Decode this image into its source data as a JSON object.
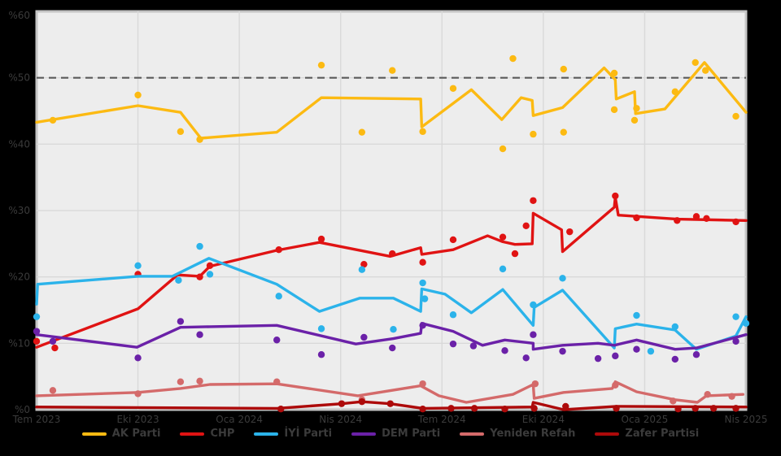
{
  "figure": {
    "background": "#000000",
    "plot_bg": "#EDEDED",
    "grid_color": "#D9D9D9",
    "spine_color": "#C4C4C4",
    "text_color": "#3B3B3B",
    "dashed_line_color": "#5A5A5A"
  },
  "chart_data": {
    "type": "line",
    "title": "",
    "xlabel": "",
    "ylabel": "",
    "x_axis": {
      "range": [
        0,
        7
      ],
      "tick_labels": [
        "Tem 2023",
        "Eki 2023",
        "Oca 2024",
        "Nis 2024",
        "Tem 2024",
        "Eki 2024",
        "Oca 2025",
        "Nis 2025"
      ]
    },
    "y_axis": {
      "range": [
        0,
        60
      ],
      "unit": "%",
      "tick_labels": [
        "%60",
        "%50",
        "%40",
        "%30",
        "%20",
        "%10",
        "%0"
      ],
      "tick_values": [
        60,
        50,
        40,
        30,
        20,
        10,
        0
      ]
    },
    "majority_threshold": 50,
    "grid": true,
    "legend_position": "bottom",
    "series": [
      {
        "name": "AK Parti",
        "color": "#FCBA12",
        "trend": [
          [
            0,
            43.3
          ],
          [
            1.0,
            45.8
          ],
          [
            1.42,
            44.8
          ],
          [
            1.62,
            40.9
          ],
          [
            2.37,
            41.8
          ],
          [
            2.81,
            47.0
          ],
          [
            3.79,
            46.8
          ],
          [
            3.8,
            42.6
          ],
          [
            4.29,
            48.2
          ],
          [
            4.59,
            43.7
          ],
          [
            4.78,
            47.0
          ],
          [
            4.89,
            46.6
          ],
          [
            4.9,
            44.3
          ],
          [
            5.19,
            45.5
          ],
          [
            5.6,
            51.5
          ],
          [
            5.71,
            49.7
          ],
          [
            5.72,
            46.8
          ],
          [
            5.9,
            47.9
          ],
          [
            5.91,
            44.6
          ],
          [
            6.2,
            45.3
          ],
          [
            6.59,
            52.3
          ],
          [
            7.0,
            44.8
          ]
        ],
        "points": [
          [
            0.16,
            43.6
          ],
          [
            1.0,
            47.4
          ],
          [
            1.42,
            41.9
          ],
          [
            1.61,
            40.7
          ],
          [
            2.81,
            51.9
          ],
          [
            3.21,
            41.8
          ],
          [
            3.51,
            51.1
          ],
          [
            3.81,
            41.9
          ],
          [
            4.11,
            48.4
          ],
          [
            4.6,
            39.3
          ],
          [
            4.7,
            52.9
          ],
          [
            4.9,
            41.5
          ],
          [
            5.2,
            51.3
          ],
          [
            5.2,
            41.8
          ],
          [
            5.7,
            50.7
          ],
          [
            5.7,
            45.2
          ],
          [
            5.9,
            43.6
          ],
          [
            5.92,
            45.4
          ],
          [
            6.3,
            47.9
          ],
          [
            6.5,
            52.3
          ],
          [
            6.6,
            51.1
          ],
          [
            6.9,
            44.2
          ]
        ]
      },
      {
        "name": "CHP",
        "color": "#E01313",
        "trend": [
          [
            0,
            9.4
          ],
          [
            1.0,
            15.2
          ],
          [
            1.39,
            20.3
          ],
          [
            1.61,
            20.1
          ],
          [
            1.71,
            21.6
          ],
          [
            2.37,
            24.0
          ],
          [
            2.79,
            25.2
          ],
          [
            3.49,
            23.1
          ],
          [
            3.79,
            24.4
          ],
          [
            3.8,
            23.4
          ],
          [
            4.11,
            24.1
          ],
          [
            4.45,
            26.2
          ],
          [
            4.6,
            25.3
          ],
          [
            4.72,
            24.9
          ],
          [
            4.89,
            25.0
          ],
          [
            4.9,
            29.6
          ],
          [
            5.18,
            27.1
          ],
          [
            5.19,
            23.8
          ],
          [
            5.7,
            30.5
          ],
          [
            5.71,
            32.0
          ],
          [
            5.74,
            29.3
          ],
          [
            6.32,
            28.7
          ],
          [
            7.0,
            28.5
          ]
        ],
        "points": [
          [
            0.0,
            10.3
          ],
          [
            0.18,
            9.3
          ],
          [
            1.0,
            20.4
          ],
          [
            1.61,
            20.0
          ],
          [
            1.71,
            21.7
          ],
          [
            2.39,
            24.1
          ],
          [
            2.81,
            25.7
          ],
          [
            3.23,
            21.9
          ],
          [
            3.51,
            23.5
          ],
          [
            3.81,
            22.2
          ],
          [
            4.11,
            25.6
          ],
          [
            4.6,
            26.0
          ],
          [
            4.72,
            23.5
          ],
          [
            4.83,
            27.7
          ],
          [
            4.9,
            31.5
          ],
          [
            5.26,
            26.8
          ],
          [
            5.71,
            32.2
          ],
          [
            5.92,
            28.9
          ],
          [
            6.32,
            28.5
          ],
          [
            6.51,
            29.1
          ],
          [
            6.61,
            28.8
          ],
          [
            6.9,
            28.3
          ]
        ]
      },
      {
        "name": "İYİ Parti",
        "color": "#2BB3EA",
        "trend": [
          [
            0,
            15.9
          ],
          [
            0.01,
            18.9
          ],
          [
            1.0,
            20.1
          ],
          [
            1.34,
            20.1
          ],
          [
            1.7,
            22.8
          ],
          [
            2.37,
            18.9
          ],
          [
            2.79,
            14.8
          ],
          [
            3.19,
            16.8
          ],
          [
            3.52,
            16.8
          ],
          [
            3.79,
            14.8
          ],
          [
            3.8,
            18.2
          ],
          [
            4.03,
            17.4
          ],
          [
            4.29,
            14.6
          ],
          [
            4.6,
            18.1
          ],
          [
            4.9,
            12.7
          ],
          [
            4.91,
            15.4
          ],
          [
            5.19,
            18.0
          ],
          [
            5.7,
            9.3
          ],
          [
            5.71,
            12.2
          ],
          [
            5.92,
            12.9
          ],
          [
            6.3,
            12.0
          ],
          [
            6.51,
            9.1
          ],
          [
            6.9,
            11.1
          ],
          [
            7.0,
            14.0
          ]
        ],
        "points": [
          [
            0.0,
            14.0
          ],
          [
            1.0,
            21.7
          ],
          [
            1.4,
            19.5
          ],
          [
            1.61,
            24.6
          ],
          [
            1.71,
            20.4
          ],
          [
            2.39,
            17.1
          ],
          [
            2.81,
            12.2
          ],
          [
            3.21,
            21.1
          ],
          [
            3.52,
            12.1
          ],
          [
            3.81,
            19.1
          ],
          [
            3.83,
            16.7
          ],
          [
            4.11,
            14.3
          ],
          [
            4.6,
            21.2
          ],
          [
            4.9,
            15.8
          ],
          [
            5.19,
            19.8
          ],
          [
            5.92,
            14.2
          ],
          [
            6.06,
            8.8
          ],
          [
            6.3,
            12.5
          ],
          [
            6.9,
            14.0
          ],
          [
            7.0,
            13.0
          ]
        ]
      },
      {
        "name": "DEM Parti",
        "color": "#6B21A8",
        "trend": [
          [
            0,
            11.3
          ],
          [
            0.99,
            9.4
          ],
          [
            1.42,
            12.4
          ],
          [
            1.71,
            12.5
          ],
          [
            2.37,
            12.7
          ],
          [
            3.15,
            9.9
          ],
          [
            3.52,
            10.7
          ],
          [
            3.79,
            11.5
          ],
          [
            3.8,
            13.0
          ],
          [
            4.11,
            11.8
          ],
          [
            4.4,
            9.7
          ],
          [
            4.62,
            10.5
          ],
          [
            4.9,
            10.0
          ],
          [
            4.9,
            9.1
          ],
          [
            5.19,
            9.7
          ],
          [
            5.54,
            10.0
          ],
          [
            5.7,
            9.7
          ],
          [
            5.92,
            10.5
          ],
          [
            6.3,
            9.1
          ],
          [
            6.51,
            9.3
          ],
          [
            7.0,
            11.3
          ]
        ],
        "points": [
          [
            0.0,
            11.8
          ],
          [
            0.16,
            10.3
          ],
          [
            1.0,
            7.8
          ],
          [
            1.42,
            13.3
          ],
          [
            1.61,
            11.3
          ],
          [
            2.37,
            10.5
          ],
          [
            2.81,
            8.3
          ],
          [
            3.23,
            10.9
          ],
          [
            3.51,
            9.3
          ],
          [
            3.81,
            12.7
          ],
          [
            4.11,
            9.9
          ],
          [
            4.31,
            9.6
          ],
          [
            4.62,
            8.9
          ],
          [
            4.83,
            7.8
          ],
          [
            4.9,
            11.3
          ],
          [
            5.19,
            8.8
          ],
          [
            5.54,
            7.7
          ],
          [
            5.71,
            8.1
          ],
          [
            5.92,
            9.1
          ],
          [
            6.3,
            7.6
          ],
          [
            6.51,
            8.3
          ],
          [
            6.9,
            10.3
          ]
        ]
      },
      {
        "name": "Yeniden Refah",
        "color": "#D46A6A",
        "trend": [
          [
            0,
            2.1
          ],
          [
            1.0,
            2.6
          ],
          [
            1.42,
            3.2
          ],
          [
            1.71,
            3.8
          ],
          [
            2.37,
            3.9
          ],
          [
            3.17,
            2.1
          ],
          [
            3.79,
            3.6
          ],
          [
            3.97,
            2.1
          ],
          [
            4.24,
            1.1
          ],
          [
            4.7,
            2.3
          ],
          [
            4.9,
            3.8
          ],
          [
            4.91,
            1.7
          ],
          [
            5.2,
            2.6
          ],
          [
            5.68,
            3.2
          ],
          [
            5.71,
            4.2
          ],
          [
            5.92,
            2.7
          ],
          [
            6.3,
            1.5
          ],
          [
            6.52,
            1.1
          ],
          [
            6.61,
            2.1
          ],
          [
            6.97,
            2.3
          ]
        ],
        "points": [
          [
            0.16,
            2.9
          ],
          [
            1.0,
            2.4
          ],
          [
            1.42,
            4.2
          ],
          [
            1.61,
            4.3
          ],
          [
            2.37,
            4.2
          ],
          [
            3.21,
            1.5
          ],
          [
            3.81,
            3.9
          ],
          [
            4.92,
            3.9
          ],
          [
            5.71,
            3.7
          ],
          [
            6.28,
            1.3
          ],
          [
            6.62,
            2.3
          ],
          [
            6.86,
            2.0
          ]
        ]
      },
      {
        "name": "Zafer Partisi",
        "color": "#AD0A0A",
        "trend": [
          [
            0,
            0.4
          ],
          [
            2.37,
            0.2
          ],
          [
            3.01,
            0.9
          ],
          [
            3.21,
            1.2
          ],
          [
            3.49,
            0.9
          ],
          [
            3.81,
            0.2
          ],
          [
            4.89,
            0.4
          ],
          [
            4.9,
            1.1
          ],
          [
            5.2,
            0.0
          ],
          [
            5.72,
            0.5
          ],
          [
            7.0,
            0.4
          ]
        ],
        "points": [
          [
            2.41,
            0.1
          ],
          [
            3.01,
            0.9
          ],
          [
            3.21,
            1.2
          ],
          [
            3.49,
            0.9
          ],
          [
            3.81,
            0.1
          ],
          [
            4.09,
            0.2
          ],
          [
            4.32,
            0.2
          ],
          [
            4.62,
            0.1
          ],
          [
            4.91,
            0.2
          ],
          [
            5.22,
            0.5
          ],
          [
            5.72,
            0.2
          ],
          [
            6.33,
            0.1
          ],
          [
            6.5,
            0.2
          ],
          [
            6.68,
            0.2
          ],
          [
            6.9,
            0.2
          ]
        ]
      }
    ]
  }
}
